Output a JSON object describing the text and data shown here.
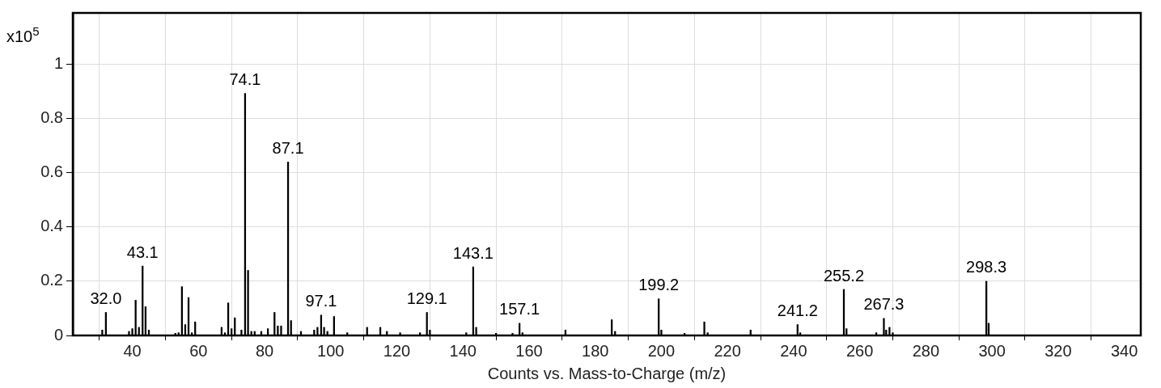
{
  "chart_data": {
    "type": "bar",
    "xlabel": "Counts vs. Mass-to-Charge (m/z)",
    "ylabel": "x10$^{5}$",
    "x": [
      30.9,
      32,
      39,
      40,
      41,
      42,
      43.1,
      44,
      45,
      53,
      54,
      55,
      56,
      57,
      58,
      59,
      67,
      68,
      69,
      70,
      71,
      73,
      74.1,
      75,
      76,
      77,
      79,
      81,
      83,
      84,
      85,
      87.1,
      88,
      91,
      95,
      96,
      97.1,
      98,
      99,
      101,
      105,
      111,
      115,
      117,
      121,
      127,
      129.1,
      130,
      141,
      143.1,
      144,
      150,
      155,
      157.1,
      158,
      171,
      185,
      186,
      199.2,
      200,
      207,
      213,
      214,
      227,
      241.2,
      242,
      255.2,
      256,
      265,
      267.3,
      268,
      269,
      270,
      298.3,
      299
    ],
    "values": [
      0.02,
      0.085,
      0.015,
      0.025,
      0.13,
      0.03,
      0.256,
      0.106,
      0.02,
      0.008,
      0.01,
      0.18,
      0.04,
      0.14,
      0.01,
      0.05,
      0.03,
      0.01,
      0.12,
      0.025,
      0.065,
      0.02,
      0.893,
      0.24,
      0.015,
      0.015,
      0.015,
      0.025,
      0.085,
      0.035,
      0.035,
      0.64,
      0.055,
      0.015,
      0.02,
      0.03,
      0.075,
      0.03,
      0.015,
      0.07,
      0.01,
      0.03,
      0.03,
      0.015,
      0.01,
      0.01,
      0.085,
      0.02,
      0.01,
      0.253,
      0.03,
      0.008,
      0.008,
      0.045,
      0.01,
      0.02,
      0.058,
      0.015,
      0.135,
      0.02,
      0.008,
      0.05,
      0.01,
      0.02,
      0.04,
      0.01,
      0.17,
      0.025,
      0.01,
      0.063,
      0.02,
      0.03,
      0.01,
      0.2,
      0.045
    ],
    "color": "#000000",
    "xlim": [
      22,
      345
    ],
    "xticks": [
      40,
      60,
      80,
      100,
      120,
      140,
      160,
      180,
      200,
      220,
      240,
      260,
      280,
      300,
      320,
      340
    ],
    "ylim": [
      0,
      1.19
    ],
    "yticks": [
      0,
      0.2,
      0.4,
      0.6,
      0.8,
      1
    ],
    "grid": true,
    "legend": false,
    "annotations": [
      {
        "text": "32.0",
        "x": 32,
        "y": 0.085
      },
      {
        "text": "43.1",
        "x": 43.1,
        "y": 0.256
      },
      {
        "text": "74.1",
        "x": 74.1,
        "y": 0.893
      },
      {
        "text": "87.1",
        "x": 87.1,
        "y": 0.64
      },
      {
        "text": "97.1",
        "x": 97.1,
        "y": 0.075
      },
      {
        "text": "129.1",
        "x": 129.1,
        "y": 0.085
      },
      {
        "text": "143.1",
        "x": 143.1,
        "y": 0.253
      },
      {
        "text": "157.1",
        "x": 157.1,
        "y": 0.045
      },
      {
        "text": "199.2",
        "x": 199.2,
        "y": 0.135
      },
      {
        "text": "241.2",
        "x": 241.2,
        "y": 0.04
      },
      {
        "text": "255.2",
        "x": 255.2,
        "y": 0.17
      },
      {
        "text": "267.3",
        "x": 267.3,
        "y": 0.063
      },
      {
        "text": "298.3",
        "x": 298.3,
        "y": 0.2
      }
    ]
  }
}
